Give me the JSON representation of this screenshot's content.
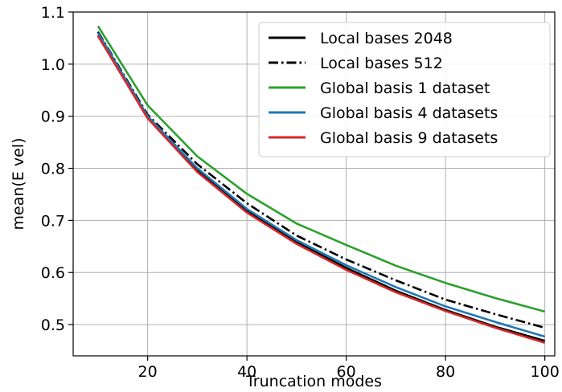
{
  "chart_data": {
    "type": "line",
    "title": "",
    "xlabel": "Truncation modes",
    "ylabel": "mean(E vel)",
    "xlim": [
      5,
      102
    ],
    "ylim": [
      0.44,
      1.1
    ],
    "xticks": [
      20,
      40,
      60,
      80,
      100
    ],
    "yticks": [
      0.5,
      0.6,
      0.7,
      0.8,
      0.9,
      1.0,
      1.1
    ],
    "xtick_labels": [
      "20",
      "40",
      "60",
      "80",
      "100"
    ],
    "ytick_labels": [
      "0.5",
      "0.6",
      "0.7",
      "0.8",
      "0.9",
      "1.0",
      "1.1"
    ],
    "grid": true,
    "legend_position": "top-right",
    "x": [
      10,
      20,
      30,
      40,
      50,
      60,
      70,
      80,
      90,
      100
    ],
    "series": [
      {
        "name": "Local bases 2048",
        "color": "#000000",
        "dash": "solid",
        "values": [
          1.055,
          0.898,
          0.796,
          0.718,
          0.658,
          0.609,
          0.565,
          0.528,
          0.496,
          0.469
        ]
      },
      {
        "name": "Local bases 512",
        "color": "#000000",
        "dash": "dashdot",
        "values": [
          1.062,
          0.903,
          0.808,
          0.733,
          0.671,
          0.625,
          0.585,
          0.548,
          0.52,
          0.494
        ]
      },
      {
        "name": "Global basis 1 dataset",
        "color": "#2ca02c",
        "dash": "solid",
        "values": [
          1.073,
          0.921,
          0.823,
          0.751,
          0.694,
          0.653,
          0.613,
          0.58,
          0.551,
          0.525
        ]
      },
      {
        "name": "Global basis 4 datasets",
        "color": "#1f77b4",
        "dash": "solid",
        "values": [
          1.06,
          0.9,
          0.8,
          0.722,
          0.662,
          0.614,
          0.572,
          0.535,
          0.505,
          0.477
        ]
      },
      {
        "name": "Global basis 9 datasets",
        "color": "#d62728",
        "dash": "solid",
        "values": [
          1.054,
          0.896,
          0.793,
          0.715,
          0.655,
          0.605,
          0.562,
          0.526,
          0.494,
          0.465
        ]
      }
    ]
  }
}
